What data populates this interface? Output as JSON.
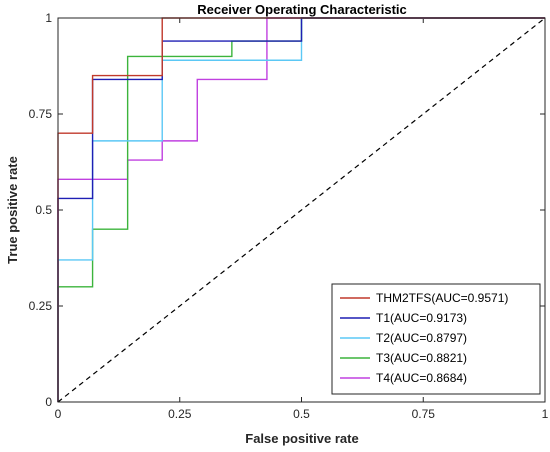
{
  "chart_data": {
    "type": "line",
    "title": "Receiver Operating Characteristic",
    "xlabel": "False positive rate",
    "ylabel": "True positive rate",
    "xlim": [
      0,
      1
    ],
    "ylim": [
      0,
      1
    ],
    "xticks": [
      0,
      0.25,
      0.5,
      0.75,
      1
    ],
    "yticks": [
      0,
      0.25,
      0.5,
      0.75,
      1
    ],
    "xtick_labels": [
      "0",
      "0.25",
      "0.5",
      "0.75",
      "1"
    ],
    "ytick_labels": [
      "0",
      "0.25",
      "0.5",
      "0.75",
      "1"
    ],
    "grid": false,
    "legend_position": "bottom-right",
    "diagonal": {
      "x": [
        0,
        1
      ],
      "y": [
        0,
        1
      ],
      "style": "dashed",
      "color": "#000000"
    },
    "series": [
      {
        "name": "THM2TFS(AUC=0.9571)",
        "color": "#c0392b",
        "x": [
          0,
          0,
          0.071,
          0.071,
          0.214,
          0.214,
          1
        ],
        "y": [
          0,
          0.7,
          0.7,
          0.85,
          0.85,
          1.0,
          1.0
        ]
      },
      {
        "name": "T1(AUC=0.9173)",
        "color": "#1f1fb4",
        "x": [
          0,
          0,
          0.071,
          0.071,
          0.214,
          0.214,
          0.5,
          0.5,
          1
        ],
        "y": [
          0,
          0.53,
          0.53,
          0.84,
          0.84,
          0.94,
          0.94,
          1.0,
          1.0
        ]
      },
      {
        "name": "T2(AUC=0.8797)",
        "color": "#5bc8f5",
        "x": [
          0,
          0,
          0.071,
          0.071,
          0.214,
          0.214,
          0.5,
          0.5,
          1
        ],
        "y": [
          0,
          0.37,
          0.37,
          0.68,
          0.68,
          0.89,
          0.89,
          1.0,
          1.0
        ]
      },
      {
        "name": "T3(AUC=0.8821)",
        "color": "#3cb43c",
        "x": [
          0,
          0,
          0.071,
          0.071,
          0.143,
          0.143,
          0.357,
          0.357,
          0.5,
          0.5,
          1
        ],
        "y": [
          0,
          0.3,
          0.3,
          0.45,
          0.45,
          0.9,
          0.9,
          0.94,
          0.94,
          1.0,
          1.0
        ]
      },
      {
        "name": "T4(AUC=0.8684)",
        "color": "#c040e0",
        "x": [
          0,
          0,
          0.143,
          0.143,
          0.214,
          0.214,
          0.286,
          0.286,
          0.429,
          0.429,
          1
        ],
        "y": [
          0,
          0.58,
          0.58,
          0.63,
          0.63,
          0.68,
          0.68,
          0.84,
          0.84,
          1.0,
          1.0
        ]
      }
    ]
  }
}
